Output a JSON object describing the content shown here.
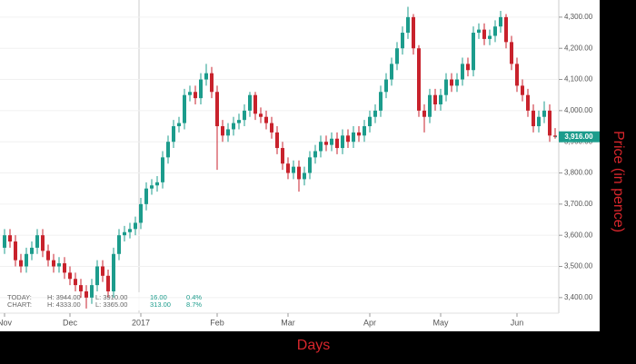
{
  "chart_data": {
    "type": "candlestick",
    "x_label": "Days",
    "y_label": "Price (in pence)",
    "categories": [
      "Nov",
      null,
      null,
      null,
      null,
      null,
      null,
      null,
      null,
      null,
      null,
      null,
      "Dec",
      null,
      null,
      null,
      null,
      null,
      null,
      null,
      null,
      null,
      null,
      null,
      null,
      "2017",
      null,
      null,
      null,
      null,
      null,
      null,
      null,
      null,
      null,
      null,
      null,
      null,
      null,
      "Feb",
      null,
      null,
      null,
      null,
      null,
      null,
      null,
      null,
      null,
      null,
      null,
      null,
      "Mar",
      null,
      null,
      null,
      null,
      null,
      null,
      null,
      null,
      null,
      null,
      null,
      null,
      null,
      null,
      "Apr",
      null,
      null,
      null,
      null,
      null,
      null,
      null,
      null,
      null,
      null,
      null,
      null,
      "May",
      null,
      null,
      null,
      null,
      null,
      null,
      null,
      null,
      null,
      null,
      null,
      null,
      null,
      "Jun",
      null,
      null,
      null,
      null,
      null,
      null,
      null
    ],
    "open": [
      3560,
      3600,
      3580,
      3520,
      3500,
      3540,
      3560,
      3600,
      3550,
      3520,
      3500,
      3510,
      3480,
      3460,
      3440,
      3420,
      3400,
      3440,
      3500,
      3470,
      3420,
      3540,
      3600,
      3610,
      3620,
      3640,
      3700,
      3750,
      3760,
      3770,
      3850,
      3900,
      3950,
      3960,
      4050,
      4060,
      4040,
      4100,
      4120,
      4060,
      3950,
      3920,
      3940,
      3960,
      3970,
      4000,
      4050,
      3990,
      3980,
      3960,
      3930,
      3880,
      3830,
      3800,
      3820,
      3780,
      3800,
      3850,
      3870,
      3900,
      3890,
      3910,
      3880,
      3920,
      3900,
      3930,
      3920,
      3950,
      3980,
      4000,
      4060,
      4100,
      4150,
      4200,
      4250,
      4300,
      4200,
      4000,
      3980,
      4050,
      4020,
      4050,
      4100,
      4080,
      4100,
      4150,
      4130,
      4250,
      4260,
      4230,
      4240,
      4270,
      4300,
      4220,
      4150,
      4080,
      4050,
      4000,
      3950,
      3980,
      4000,
      3920
    ],
    "high": [
      3620,
      3620,
      3600,
      3540,
      3560,
      3580,
      3620,
      3620,
      3570,
      3540,
      3530,
      3530,
      3500,
      3480,
      3460,
      3440,
      3460,
      3520,
      3520,
      3490,
      3560,
      3620,
      3630,
      3640,
      3660,
      3720,
      3770,
      3780,
      3790,
      3870,
      3920,
      3970,
      3980,
      4070,
      4080,
      4080,
      4120,
      4150,
      4140,
      4080,
      3970,
      3960,
      3980,
      3990,
      4020,
      4060,
      4060,
      4010,
      4000,
      3980,
      3950,
      3900,
      3850,
      3840,
      3840,
      3820,
      3870,
      3890,
      3920,
      3920,
      3930,
      3930,
      3940,
      3940,
      3950,
      3950,
      3970,
      4000,
      4020,
      4080,
      4120,
      4170,
      4220,
      4270,
      4333,
      4310,
      4210,
      4020,
      4070,
      4070,
      4070,
      4120,
      4120,
      4120,
      4170,
      4170,
      4270,
      4280,
      4280,
      4260,
      4290,
      4320,
      4310,
      4240,
      4170,
      4100,
      4070,
      4020,
      4000,
      4030,
      4020,
      3944
    ],
    "low": [
      3540,
      3560,
      3500,
      3480,
      3480,
      3520,
      3540,
      3530,
      3500,
      3480,
      3480,
      3460,
      3440,
      3420,
      3400,
      3365,
      3380,
      3420,
      3450,
      3400,
      3400,
      3520,
      3580,
      3590,
      3600,
      3620,
      3680,
      3730,
      3740,
      3750,
      3830,
      3880,
      3930,
      3940,
      4030,
      4020,
      4020,
      4080,
      4040,
      3810,
      3900,
      3900,
      3920,
      3940,
      3950,
      3980,
      3970,
      3960,
      3940,
      3910,
      3860,
      3810,
      3780,
      3780,
      3740,
      3760,
      3780,
      3830,
      3850,
      3870,
      3870,
      3860,
      3860,
      3880,
      3880,
      3900,
      3900,
      3930,
      3960,
      3980,
      4040,
      4080,
      4130,
      4180,
      4230,
      4180,
      3980,
      3930,
      3960,
      4000,
      4000,
      4030,
      4060,
      4060,
      4080,
      4110,
      4110,
      4230,
      4210,
      4210,
      4220,
      4250,
      4200,
      4130,
      4060,
      4030,
      3980,
      3930,
      3930,
      3960,
      3900,
      3910
    ],
    "close": [
      3600,
      3580,
      3520,
      3500,
      3540,
      3560,
      3600,
      3550,
      3520,
      3500,
      3510,
      3480,
      3460,
      3440,
      3420,
      3400,
      3440,
      3500,
      3470,
      3420,
      3540,
      3600,
      3610,
      3620,
      3640,
      3700,
      3750,
      3760,
      3770,
      3850,
      3900,
      3950,
      3960,
      4050,
      4060,
      4040,
      4100,
      4120,
      4060,
      3950,
      3920,
      3940,
      3960,
      3970,
      4000,
      4050,
      3990,
      3980,
      3960,
      3930,
      3880,
      3830,
      3800,
      3820,
      3780,
      3800,
      3850,
      3870,
      3900,
      3890,
      3910,
      3880,
      3920,
      3900,
      3930,
      3920,
      3950,
      3980,
      4000,
      4060,
      4100,
      4150,
      4200,
      4250,
      4300,
      4200,
      4000,
      3980,
      4050,
      4020,
      4050,
      4100,
      4080,
      4100,
      4150,
      4130,
      4250,
      4260,
      4230,
      4240,
      4270,
      4300,
      4220,
      4150,
      4080,
      4050,
      4000,
      3950,
      3980,
      4000,
      3920,
      3916
    ],
    "up_color": "#1c9c8c",
    "down_color": "#c8222c",
    "ylim": [
      3350,
      4355
    ],
    "yticks": [
      {
        "value": 3400,
        "label": "3,400.00"
      },
      {
        "value": 3500,
        "label": "3,500.00"
      },
      {
        "value": 3600,
        "label": "3,600.00"
      },
      {
        "value": 3700,
        "label": "3,700.00"
      },
      {
        "value": 3800,
        "label": "3,800.00"
      },
      {
        "value": 3900,
        "label": "3,900.00"
      },
      {
        "value": 4000,
        "label": "4,000.00"
      },
      {
        "value": 4100,
        "label": "4,100.00"
      },
      {
        "value": 4200,
        "label": "4,200.00"
      },
      {
        "value": 4300,
        "label": "4,300.00"
      }
    ],
    "grid": true,
    "last_price_label": "3,916.00",
    "summary": [
      [
        "TODAY:",
        "H: 3944.00",
        "L: 3910.00",
        "16.00",
        "0.4%"
      ],
      [
        "CHART:",
        "H: 4333.00",
        "L: 3365.00",
        "313.00",
        "8.7%"
      ]
    ]
  }
}
